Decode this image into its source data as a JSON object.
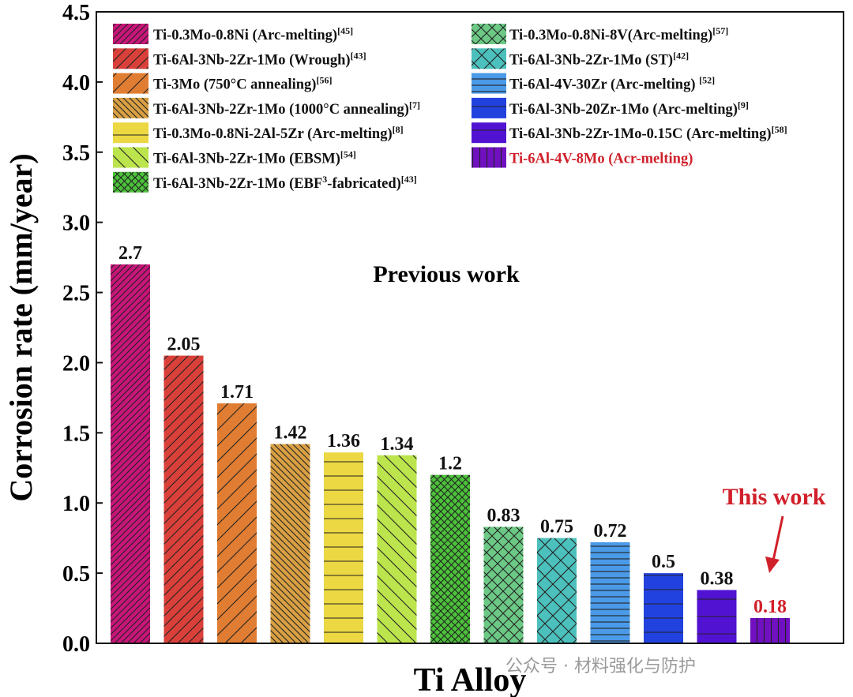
{
  "chart_data": {
    "type": "bar",
    "xlabel": "Ti Alloy",
    "ylabel": "Corrosion rate (mm/year)",
    "ylim": [
      0,
      4.5
    ],
    "yticks": [
      "0.0",
      "0.5",
      "1.0",
      "1.5",
      "2.0",
      "2.5",
      "3.0",
      "3.5",
      "4.0",
      "4.5"
    ],
    "grid": false,
    "legend_placement": "top, two columns",
    "series": [
      {
        "parts": [
          {
            "t": "Ti-0.3Mo-0.8Ni (Arc-melting)"
          },
          {
            "t": "[45]",
            "sup": true
          }
        ],
        "value": 2.7,
        "label": "2.7",
        "color": "#c8157a",
        "pattern": "diag-fwd-dense"
      },
      {
        "parts": [
          {
            "t": "Ti-6Al-3Nb-2Zr-1Mo (Wrough)"
          },
          {
            "t": "[43]",
            "sup": true
          }
        ],
        "value": 2.05,
        "label": "2.05",
        "color": "#d9403a",
        "pattern": "diag-fwd"
      },
      {
        "parts": [
          {
            "t": "Ti-3Mo (750°C annealing)"
          },
          {
            "t": "[56]",
            "sup": true
          }
        ],
        "value": 1.71,
        "label": "1.71",
        "color": "#e07d32",
        "pattern": "diag-fwd-wide"
      },
      {
        "parts": [
          {
            "t": "Ti-6Al-3Nb-2Zr-1Mo (1000°C annealing)"
          },
          {
            "t": "[7]",
            "sup": true
          }
        ],
        "value": 1.42,
        "label": "1.42",
        "color": "#d9a043",
        "pattern": "diag-back-dense"
      },
      {
        "parts": [
          {
            "t": "Ti-0.3Mo-0.8Ni-2Al-5Zr (Arc-melting)"
          },
          {
            "t": "[8]",
            "sup": true
          }
        ],
        "value": 1.36,
        "label": "1.36",
        "color": "#ecd843",
        "pattern": "horizontal"
      },
      {
        "parts": [
          {
            "t": "Ti-6Al-3Nb-2Zr-1Mo (EBSM)"
          },
          {
            "t": "[54]",
            "sup": true
          }
        ],
        "value": 1.34,
        "label": "1.34",
        "color": "#bce44c",
        "pattern": "diag-back-wide"
      },
      {
        "parts": [
          {
            "t": "Ti-6Al-3Nb-2Zr-1Mo (EBF"
          },
          {
            "t": "3",
            "sup": true
          },
          {
            "t": "-fabricated)"
          },
          {
            "t": "[43]",
            "sup": true
          }
        ],
        "value": 1.2,
        "label": "1.2",
        "color": "#4cc23a",
        "pattern": "crosshatch-dense"
      },
      {
        "parts": [
          {
            "t": "Ti-0.3Mo-0.8Ni-8V(Arc-melting)"
          },
          {
            "t": "[57]",
            "sup": true
          }
        ],
        "value": 0.83,
        "label": "0.83",
        "color": "#6cc985",
        "pattern": "crosshatch"
      },
      {
        "parts": [
          {
            "t": "Ti-6Al-3Nb-2Zr-1Mo (ST)"
          },
          {
            "t": "[42]",
            "sup": true
          }
        ],
        "value": 0.75,
        "label": "0.75",
        "color": "#4cc0bc",
        "pattern": "crosshatch-wide"
      },
      {
        "parts": [
          {
            "t": "Ti-6Al-4V-30Zr (Arc-melting) "
          },
          {
            "t": "[52]",
            "sup": true
          }
        ],
        "value": 0.72,
        "label": "0.72",
        "color": "#4a9ae8",
        "pattern": "horizontal-dense"
      },
      {
        "parts": [
          {
            "t": "Ti-6Al-3Nb-20Zr-1Mo (Arc-melting)"
          },
          {
            "t": "[9]",
            "sup": true
          }
        ],
        "value": 0.5,
        "label": "0.5",
        "color": "#2242e0",
        "pattern": "horizontal"
      },
      {
        "parts": [
          {
            "t": "Ti-6Al-3Nb-2Zr-1Mo-0.15C (Arc-melting)"
          },
          {
            "t": "[58]",
            "sup": true
          }
        ],
        "value": 0.38,
        "label": "0.38",
        "color": "#5212d2",
        "pattern": "horizontal-wide"
      },
      {
        "parts": [
          {
            "t": "Ti-6Al-4V-8Mo (Acr-melting)"
          }
        ],
        "value": 0.18,
        "label": "0.18",
        "color": "#7010c0",
        "pattern": "vertical",
        "highlight": true
      }
    ],
    "annotations": {
      "previous": "Previous work",
      "this": "This work",
      "highlight_color": "#d0202a"
    }
  },
  "watermark": "公众号 · 材料强化与防护"
}
